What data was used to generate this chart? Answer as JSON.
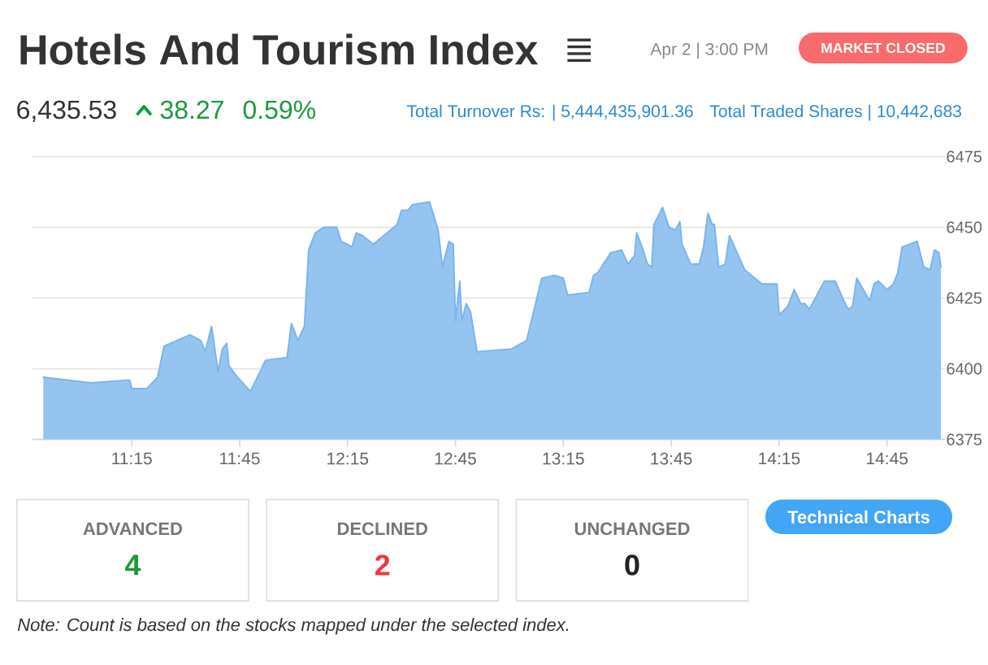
{
  "chart_data": [
    {
      "type": "area",
      "title": "Hotels And Tourism Index",
      "subtitle": "Apr 2 | 3:00 PM",
      "annotations": [
        "MARKET CLOSED",
        "6,435.53",
        "38.27",
        "0.59%",
        "Total Turnover Rs: | 5,444,435,901.36",
        "Total Traded Shares | 10,442,683"
      ],
      "x": [
        10.84,
        11.06,
        11.24,
        11.25,
        11.32,
        11.37,
        11.4,
        11.52,
        11.57,
        11.59,
        11.62,
        11.65,
        11.67,
        11.69,
        11.7,
        11.74,
        11.8,
        11.87,
        11.97,
        11.99,
        12.02,
        12.05,
        12.07,
        12.1,
        12.14,
        12.2,
        12.22,
        12.25,
        12.27,
        12.29,
        12.32,
        12.37,
        12.48,
        12.5,
        12.53,
        12.55,
        12.63,
        12.67,
        12.69,
        12.72,
        12.74,
        12.75,
        12.77,
        12.78,
        12.8,
        12.82,
        12.85,
        13.01,
        13.08,
        13.15,
        13.21,
        13.25,
        13.27,
        13.37,
        13.39,
        13.41,
        13.47,
        13.52,
        13.55,
        13.58,
        13.59,
        13.62,
        13.64,
        13.66,
        13.67,
        13.71,
        13.74,
        13.77,
        13.79,
        13.8,
        13.84,
        13.88,
        13.9,
        13.92,
        13.94,
        13.95,
        13.97,
        14.0,
        14.02,
        14.09,
        14.17,
        14.24,
        14.25,
        14.29,
        14.32,
        14.35,
        14.37,
        14.39,
        14.46,
        14.51,
        14.55,
        14.57,
        14.59,
        14.61,
        14.67,
        14.69,
        14.71,
        14.75,
        14.78,
        14.8,
        14.82,
        14.89,
        14.92,
        14.95,
        14.97,
        14.99,
        15.0
      ],
      "values": [
        6397,
        6395,
        6396,
        6393,
        6393,
        6397,
        6408,
        6412,
        6410,
        6406,
        6415,
        6399,
        6407,
        6409,
        6401,
        6397,
        6392,
        6403,
        6404,
        6416,
        6410,
        6415,
        6442,
        6448,
        6450,
        6450,
        6445,
        6444,
        6443,
        6448,
        6447,
        6444,
        6451,
        6456,
        6456,
        6458,
        6459,
        6449,
        6436,
        6445,
        6444,
        6417,
        6431,
        6417,
        6423,
        6420,
        6406,
        6407,
        6410,
        6432,
        6433,
        6432,
        6426,
        6427,
        6433,
        6434,
        6441,
        6442,
        6437,
        6440,
        6448,
        6442,
        6437,
        6436,
        6451,
        6457,
        6450,
        6449,
        6452,
        6444,
        6437,
        6437,
        6443,
        6455,
        6451,
        6451,
        6436,
        6437,
        6447,
        6435,
        6430,
        6430,
        6419,
        6422,
        6428,
        6423,
        6423,
        6421,
        6431,
        6431,
        6424,
        6421,
        6422,
        6432,
        6424,
        6430,
        6431,
        6428,
        6430,
        6434,
        6443,
        6445,
        6436,
        6435,
        6442,
        6441,
        6436
      ],
      "color": "#7cb5ec",
      "xlim": [
        10.79,
        15.02
      ],
      "ylim": [
        6375,
        6475
      ],
      "xticks": [
        {
          "value": 11.25,
          "label": "11:15"
        },
        {
          "value": 11.75,
          "label": "11:45"
        },
        {
          "value": 12.25,
          "label": "12:15"
        },
        {
          "value": 12.75,
          "label": "12:45"
        },
        {
          "value": 13.25,
          "label": "13:15"
        },
        {
          "value": 13.75,
          "label": "13:45"
        },
        {
          "value": 14.25,
          "label": "14:15"
        },
        {
          "value": 14.75,
          "label": "14:45"
        }
      ],
      "yticks": [
        6375,
        6400,
        6425,
        6450,
        6475
      ],
      "grid": "y"
    },
    {
      "type": "other",
      "categories": [
        "ADVANCED",
        "DECLINED",
        "UNCHANGED"
      ],
      "values": [
        4,
        2,
        0
      ],
      "colors": [
        "#1a9a3a",
        "#f5333f",
        "#222222"
      ],
      "data_labels": true,
      "annotations": [
        "Technical Charts",
        "Note: Count is based on the stocks mapped under the selected index."
      ]
    }
  ]
}
